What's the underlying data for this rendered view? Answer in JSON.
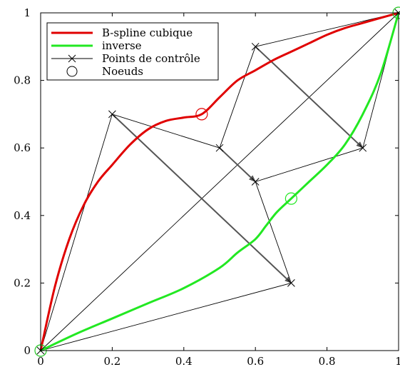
{
  "chart_data": {
    "type": "line",
    "xlim": [
      0,
      1
    ],
    "ylim": [
      0,
      1
    ],
    "grid": false,
    "legend_position": "top-left",
    "x_ticks": [
      "0",
      "0.2",
      "0.4",
      "0.6",
      "0.8",
      "1"
    ],
    "y_ticks": [
      "0",
      "0.2",
      "0.4",
      "0.6",
      "0.8",
      "1"
    ],
    "x_tick_values": [
      0,
      0.2,
      0.4,
      0.6,
      0.8,
      1
    ],
    "y_tick_values": [
      0,
      0.2,
      0.4,
      0.6,
      0.8,
      1
    ],
    "series": [
      {
        "name": "B-spline cubique",
        "color": "#e00000",
        "x": [
          0,
          0.04,
          0.08,
          0.12,
          0.16,
          0.2,
          0.25,
          0.3,
          0.35,
          0.4,
          0.45,
          0.5,
          0.55,
          0.6,
          0.65,
          0.7,
          0.75,
          0.8,
          0.85,
          0.9,
          0.95,
          1
        ],
        "y": [
          0,
          0.19,
          0.33,
          0.43,
          0.5,
          0.55,
          0.61,
          0.655,
          0.68,
          0.69,
          0.7,
          0.75,
          0.8,
          0.83,
          0.86,
          0.885,
          0.91,
          0.935,
          0.955,
          0.97,
          0.985,
          1
        ]
      },
      {
        "name": "inverse",
        "color": "#22e822",
        "x": [
          0,
          0.1,
          0.2,
          0.3,
          0.4,
          0.5,
          0.55,
          0.6,
          0.63,
          0.66,
          0.7,
          0.75,
          0.8,
          0.85,
          0.9,
          0.95,
          1
        ],
        "y": [
          0,
          0.05,
          0.095,
          0.14,
          0.185,
          0.245,
          0.29,
          0.33,
          0.37,
          0.41,
          0.45,
          0.5,
          0.55,
          0.61,
          0.7,
          0.82,
          1
        ]
      }
    ],
    "control_points": {
      "name": "Points de contrôle",
      "color": "#000000",
      "points": [
        [
          0,
          0
        ],
        [
          0.2,
          0.7
        ],
        [
          0.5,
          0.6
        ],
        [
          0.6,
          0.9
        ],
        [
          1,
          1
        ],
        [
          0.9,
          0.6
        ],
        [
          0.6,
          0.5
        ],
        [
          0.7,
          0.2
        ]
      ],
      "polygon_order": [
        [
          0,
          0
        ],
        [
          0.2,
          0.7
        ],
        [
          0.5,
          0.6
        ],
        [
          0.6,
          0.9
        ],
        [
          1,
          1
        ],
        [
          0.9,
          0.6
        ],
        [
          0.6,
          0.5
        ],
        [
          0.7,
          0.2
        ],
        [
          0,
          0
        ]
      ],
      "diagonal": [
        [
          0,
          0
        ],
        [
          1,
          1
        ]
      ]
    },
    "nodes": {
      "name": "Noeuds",
      "points": [
        {
          "x": 0,
          "y": 0,
          "color": "#22c822"
        },
        {
          "x": 0.45,
          "y": 0.7,
          "color": "#e00000"
        },
        {
          "x": 0.7,
          "y": 0.45,
          "color": "#22e822"
        },
        {
          "x": 1,
          "y": 1,
          "color": "#22c822"
        }
      ]
    },
    "arrows": {
      "color": "#555555",
      "segments": [
        [
          [
            0.2,
            0.7
          ],
          [
            0.7,
            0.2
          ]
        ],
        [
          [
            0.5,
            0.6
          ],
          [
            0.6,
            0.5
          ]
        ],
        [
          [
            0.6,
            0.9
          ],
          [
            0.9,
            0.6
          ]
        ]
      ]
    }
  }
}
